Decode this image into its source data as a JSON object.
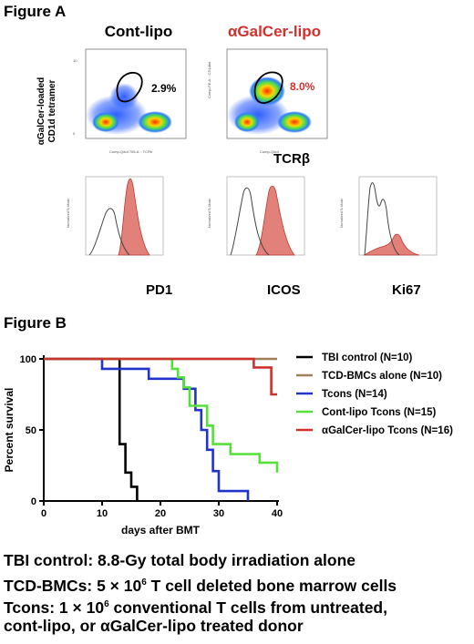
{
  "figure_a": {
    "title": "Figure A",
    "panel_cont": "Cont-lipo",
    "panel_agalcer": "αGalCer-lipo",
    "ylabel_line1": "αGalCer-loaded",
    "ylabel_line2": "CD1d tetramer",
    "pct_cont": "2.9%",
    "pct_agalcer": "8.0%",
    "xlabel_tcr": "TCRβ",
    "hist_markers": [
      "PD1",
      "ICOS",
      "Ki67"
    ],
    "colors": {
      "accent_red": "#d0312d",
      "histogram_fill": "#e2807a"
    }
  },
  "figure_b": {
    "title": "Figure B"
  },
  "chart_data": {
    "type": "line",
    "subtype": "kaplan-meier survival",
    "xlabel": "days after BMT",
    "ylabel": "Percent survival",
    "xlim": [
      0,
      40
    ],
    "ylim": [
      0,
      100
    ],
    "xticks": [
      0,
      10,
      20,
      30,
      40
    ],
    "yticks": [
      0,
      50,
      100
    ],
    "legend_position": "right",
    "series": [
      {
        "name": "TBI control (N=10)",
        "color": "#000000",
        "x": [
          0,
          13,
          13,
          14,
          14,
          15,
          15,
          16,
          16
        ],
        "y": [
          100,
          100,
          40,
          40,
          20,
          20,
          10,
          10,
          0
        ]
      },
      {
        "name": "TCD-BMCs alone (N=10)",
        "color": "#a0805a",
        "x": [
          0,
          40
        ],
        "y": [
          100,
          100
        ]
      },
      {
        "name": "Tcons (N=14)",
        "color": "#2233cc",
        "x": [
          0,
          10,
          10,
          18,
          18,
          24,
          24,
          26,
          26,
          27,
          27,
          28,
          28,
          29,
          29,
          30,
          30,
          35,
          35
        ],
        "y": [
          100,
          100,
          93,
          93,
          86,
          86,
          79,
          79,
          64,
          64,
          50,
          50,
          36,
          36,
          21,
          21,
          7,
          7,
          0
        ]
      },
      {
        "name": "Cont-lipo Tcons (N=15)",
        "color": "#55e03a",
        "x": [
          0,
          22,
          22,
          23,
          23,
          24,
          24,
          25,
          25,
          28,
          28,
          29,
          29,
          32,
          32,
          37,
          37,
          40,
          40
        ],
        "y": [
          100,
          100,
          93,
          93,
          87,
          87,
          80,
          80,
          67,
          67,
          53,
          53,
          40,
          40,
          33,
          33,
          27,
          27,
          20
        ]
      },
      {
        "name": "αGalCer-lipo Tcons (N=16)",
        "color": "#d0312d",
        "x": [
          0,
          36,
          36,
          39,
          39,
          40
        ],
        "y": [
          100,
          100,
          94,
          94,
          75,
          75
        ]
      }
    ]
  },
  "footnotes": {
    "line1": "TBI control: 8.8-Gy total body irradiation alone",
    "line2_prefix": "TCD-BMCs: 5 × 10",
    "line2_sup": "6",
    "line2_suffix": " T cell deleted bone marrow cells",
    "line3_prefix": "Tcons: 1 × 10",
    "line3_sup": "6",
    "line3_suffix": " conventional T cells from untreated,",
    "line4": "cont-lipo, or αGalCer-lipo treated donor"
  }
}
